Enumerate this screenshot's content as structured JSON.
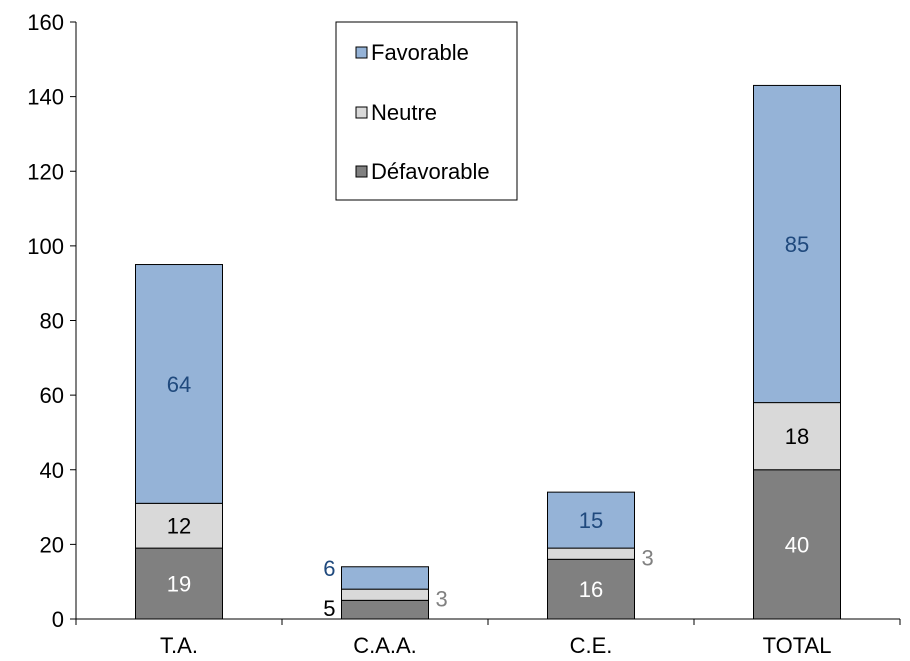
{
  "chart_data": {
    "type": "bar",
    "stacked": true,
    "categories": [
      "T.A.",
      "C.A.A.",
      "C.E.",
      "TOTAL"
    ],
    "series": [
      {
        "name": "Défavorable",
        "values": [
          19,
          5,
          16,
          40
        ],
        "color": "#808080",
        "label_color": "#ffffff"
      },
      {
        "name": "Neutre",
        "values": [
          12,
          3,
          3,
          18
        ],
        "color": "#d9d9d9",
        "label_color": "#000000"
      },
      {
        "name": "Favorable",
        "values": [
          64,
          6,
          15,
          85
        ],
        "color": "#95b3d7",
        "label_color": "#1f497d"
      }
    ],
    "legend_order": [
      "Favorable",
      "Neutre",
      "Défavorable"
    ],
    "ylim": [
      0,
      160
    ],
    "yticks": [
      0,
      20,
      40,
      60,
      80,
      100,
      120,
      140,
      160
    ],
    "grid": false,
    "legend_position": "top-center",
    "title": "",
    "xlabel": "",
    "ylabel": ""
  }
}
